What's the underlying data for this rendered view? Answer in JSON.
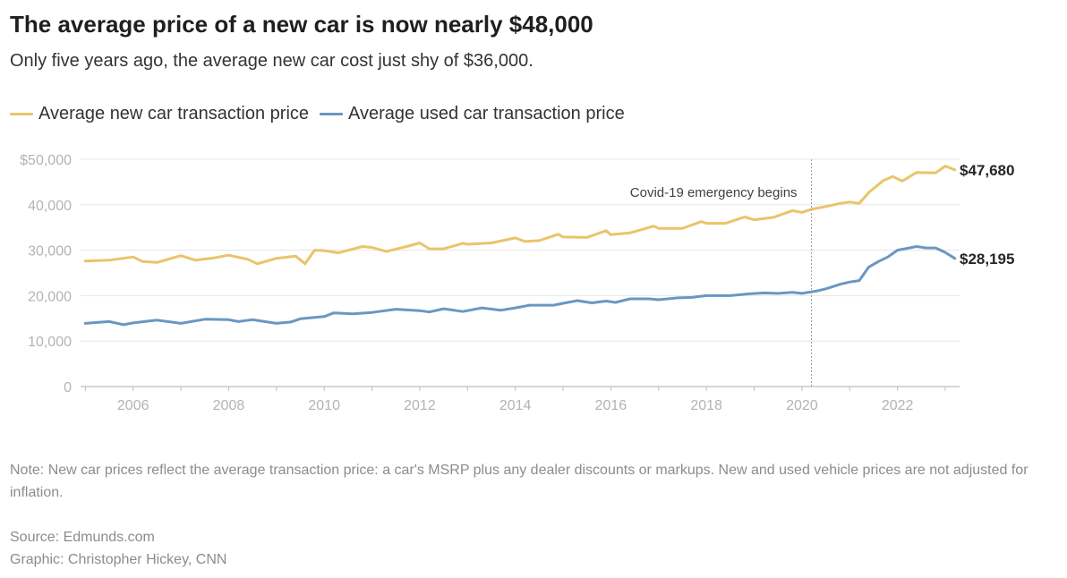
{
  "title": "The average price of a new car is now nearly $48,000",
  "subtitle": "Only five years ago, the average new car cost just shy of $36,000.",
  "note": "Note: New car prices reflect the average transaction price: a car's MSRP plus any dealer discounts or markups. New and used vehicle prices are not adjusted for inflation.",
  "source": "Source: Edmunds.com",
  "credit": "Graphic: Christopher Hickey, CNN",
  "colors": {
    "new": "#e9c46a",
    "used": "#6a97c1",
    "grid": "#e6e6e6",
    "axis": "#bfbfbf",
    "annotation_line": "#999999"
  },
  "chart_data": {
    "type": "line",
    "x_label_ticks": [
      "2006",
      "2008",
      "2010",
      "2012",
      "2014",
      "2016",
      "2018",
      "2020",
      "2022"
    ],
    "y_tick_labels": [
      "0",
      "10,000",
      "20,000",
      "30,000",
      "40,000",
      "$50,000"
    ],
    "y_ticks": [
      0,
      10000,
      20000,
      30000,
      40000,
      50000
    ],
    "ylim": [
      0,
      50000
    ],
    "xlim": [
      2004.9,
      2023.3
    ],
    "grid": true,
    "legend_position": "top-left",
    "annotation": {
      "label": "Covid-19 emergency begins",
      "x": 2020.2
    },
    "series": [
      {
        "name": "Average new car transaction price",
        "color": "#e9c46a",
        "end_label": "$47,680",
        "points": [
          [
            2005.0,
            27600
          ],
          [
            2005.5,
            27800
          ],
          [
            2006.0,
            28500
          ],
          [
            2006.2,
            27500
          ],
          [
            2006.5,
            27300
          ],
          [
            2007.0,
            28800
          ],
          [
            2007.3,
            27800
          ],
          [
            2007.7,
            28300
          ],
          [
            2008.0,
            28900
          ],
          [
            2008.4,
            28000
          ],
          [
            2008.6,
            27000
          ],
          [
            2009.0,
            28200
          ],
          [
            2009.4,
            28700
          ],
          [
            2009.6,
            27000
          ],
          [
            2009.8,
            30000
          ],
          [
            2010.0,
            29900
          ],
          [
            2010.3,
            29400
          ],
          [
            2010.8,
            30800
          ],
          [
            2011.0,
            30600
          ],
          [
            2011.3,
            29700
          ],
          [
            2011.8,
            31000
          ],
          [
            2012.0,
            31600
          ],
          [
            2012.2,
            30300
          ],
          [
            2012.5,
            30300
          ],
          [
            2012.9,
            31500
          ],
          [
            2013.0,
            31300
          ],
          [
            2013.5,
            31600
          ],
          [
            2014.0,
            32700
          ],
          [
            2014.2,
            31900
          ],
          [
            2014.5,
            32100
          ],
          [
            2014.9,
            33500
          ],
          [
            2015.0,
            32900
          ],
          [
            2015.5,
            32800
          ],
          [
            2015.9,
            34300
          ],
          [
            2016.0,
            33400
          ],
          [
            2016.4,
            33800
          ],
          [
            2016.9,
            35300
          ],
          [
            2017.0,
            34800
          ],
          [
            2017.5,
            34800
          ],
          [
            2017.9,
            36300
          ],
          [
            2018.0,
            35900
          ],
          [
            2018.4,
            35900
          ],
          [
            2018.8,
            37300
          ],
          [
            2019.0,
            36700
          ],
          [
            2019.4,
            37200
          ],
          [
            2019.8,
            38700
          ],
          [
            2020.0,
            38300
          ],
          [
            2020.2,
            39000
          ],
          [
            2020.5,
            39600
          ],
          [
            2020.8,
            40300
          ],
          [
            2021.0,
            40600
          ],
          [
            2021.2,
            40300
          ],
          [
            2021.4,
            42700
          ],
          [
            2021.7,
            45300
          ],
          [
            2021.9,
            46200
          ],
          [
            2022.1,
            45200
          ],
          [
            2022.4,
            47100
          ],
          [
            2022.8,
            47000
          ],
          [
            2023.0,
            48500
          ],
          [
            2023.2,
            47680
          ]
        ]
      },
      {
        "name": "Average used car transaction price",
        "color": "#6a97c1",
        "end_label": "$28,195",
        "points": [
          [
            2005.0,
            13900
          ],
          [
            2005.5,
            14300
          ],
          [
            2005.8,
            13600
          ],
          [
            2006.0,
            14000
          ],
          [
            2006.5,
            14600
          ],
          [
            2007.0,
            13900
          ],
          [
            2007.5,
            14800
          ],
          [
            2008.0,
            14700
          ],
          [
            2008.2,
            14300
          ],
          [
            2008.5,
            14700
          ],
          [
            2009.0,
            13900
          ],
          [
            2009.3,
            14200
          ],
          [
            2009.5,
            14900
          ],
          [
            2010.0,
            15400
          ],
          [
            2010.2,
            16200
          ],
          [
            2010.6,
            16000
          ],
          [
            2011.0,
            16300
          ],
          [
            2011.5,
            17000
          ],
          [
            2012.0,
            16700
          ],
          [
            2012.2,
            16400
          ],
          [
            2012.5,
            17100
          ],
          [
            2012.9,
            16500
          ],
          [
            2013.3,
            17300
          ],
          [
            2013.7,
            16800
          ],
          [
            2014.0,
            17300
          ],
          [
            2014.3,
            17900
          ],
          [
            2014.8,
            17900
          ],
          [
            2015.0,
            18300
          ],
          [
            2015.3,
            18900
          ],
          [
            2015.6,
            18400
          ],
          [
            2015.9,
            18800
          ],
          [
            2016.1,
            18500
          ],
          [
            2016.4,
            19300
          ],
          [
            2016.8,
            19300
          ],
          [
            2017.0,
            19100
          ],
          [
            2017.4,
            19500
          ],
          [
            2017.7,
            19600
          ],
          [
            2018.0,
            20000
          ],
          [
            2018.5,
            20000
          ],
          [
            2018.9,
            20400
          ],
          [
            2019.2,
            20600
          ],
          [
            2019.5,
            20500
          ],
          [
            2019.8,
            20700
          ],
          [
            2020.0,
            20500
          ],
          [
            2020.3,
            21000
          ],
          [
            2020.5,
            21500
          ],
          [
            2020.8,
            22500
          ],
          [
            2021.0,
            23000
          ],
          [
            2021.2,
            23300
          ],
          [
            2021.4,
            26300
          ],
          [
            2021.6,
            27500
          ],
          [
            2021.8,
            28500
          ],
          [
            2022.0,
            30000
          ],
          [
            2022.2,
            30400
          ],
          [
            2022.4,
            30800
          ],
          [
            2022.6,
            30500
          ],
          [
            2022.8,
            30500
          ],
          [
            2023.0,
            29500
          ],
          [
            2023.2,
            28195
          ]
        ]
      }
    ]
  }
}
